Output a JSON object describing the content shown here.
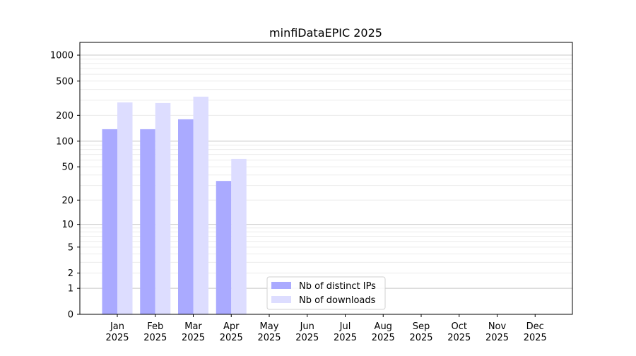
{
  "chart_data": {
    "type": "bar",
    "title": "minfiDataEPIC 2025",
    "xlabel": "",
    "ylabel": "",
    "y_scale": "log(1+y)",
    "ylim": [
      0,
      1300
    ],
    "y_ticks": [
      0,
      1,
      2,
      5,
      10,
      20,
      50,
      100,
      200,
      500,
      1000
    ],
    "grid": true,
    "legend_position": "bottom-center",
    "categories": [
      "Jan\n2025",
      "Feb\n2025",
      "Mar\n2025",
      "Apr\n2025",
      "May\n2025",
      "Jun\n2025",
      "Jul\n2025",
      "Aug\n2025",
      "Sep\n2025",
      "Oct\n2025",
      "Nov\n2025",
      "Dec\n2025"
    ],
    "series": [
      {
        "name": "Nb of distinct IPs",
        "color": "#aaaaff",
        "values": [
          138,
          138,
          180,
          34,
          0,
          0,
          0,
          0,
          0,
          0,
          0,
          0
        ]
      },
      {
        "name": "Nb of downloads",
        "color": "#ddddff",
        "values": [
          283,
          278,
          330,
          62,
          0,
          0,
          0,
          0,
          0,
          0,
          0,
          0
        ]
      }
    ]
  }
}
